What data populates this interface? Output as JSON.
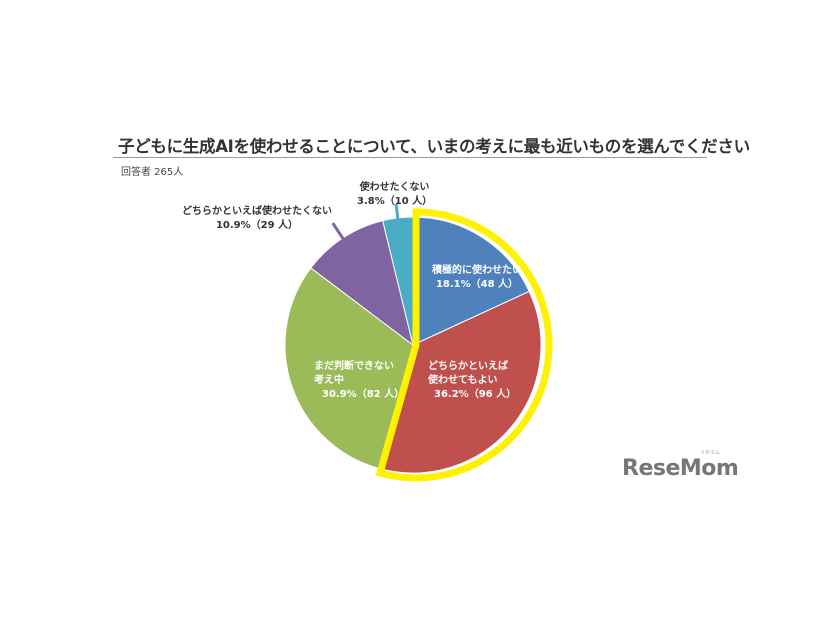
{
  "chart_data": {
    "type": "pie",
    "title": "子どもに生成AIを使わせることについて、いまの考えに最も近いものを選んでください",
    "subtitle": "回答者 265人",
    "start": "top",
    "direction": "clockwise",
    "highlight": {
      "slices": [
        0,
        1
      ],
      "color": "#FFF200"
    },
    "slices": [
      {
        "label_lines": [
          "積極的に使わせたい"
        ],
        "value_label": "18.1%（48 人）",
        "percent": 18.1,
        "count": 48,
        "color": "#4F81BD"
      },
      {
        "label_lines": [
          "どちらかといえば",
          "使わせてもよい"
        ],
        "value_label": "36.2%（96 人）",
        "percent": 36.2,
        "count": 96,
        "color": "#C0504D"
      },
      {
        "label_lines": [
          "まだ判断できない",
          "考え中"
        ],
        "value_label": "30.9%（82 人）",
        "percent": 30.9,
        "count": 82,
        "color": "#9BBB59"
      },
      {
        "label_lines": [
          "どちらかといえば使わせたくない"
        ],
        "value_label": "10.9%（29 人）",
        "percent": 10.9,
        "count": 29,
        "color": "#8064A2"
      },
      {
        "label_lines": [
          "使わせたくない"
        ],
        "value_label": "3.8%（10 人）",
        "percent": 3.8,
        "count": 10,
        "color": "#4BACC6"
      }
    ]
  },
  "logo": {
    "text": "ReseMom",
    "sub": "リセマム"
  }
}
